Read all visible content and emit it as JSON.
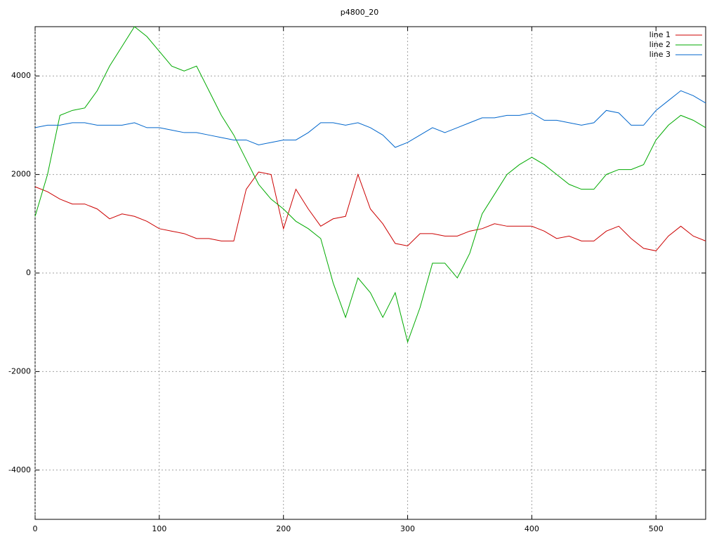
{
  "chart_data": {
    "type": "line",
    "title": "p4800_20",
    "x": [
      0,
      10,
      20,
      30,
      40,
      50,
      60,
      70,
      80,
      90,
      100,
      110,
      120,
      130,
      140,
      150,
      160,
      170,
      180,
      190,
      200,
      210,
      220,
      230,
      240,
      250,
      260,
      270,
      280,
      290,
      300,
      310,
      320,
      330,
      340,
      350,
      360,
      370,
      380,
      390,
      400,
      410,
      420,
      430,
      440,
      450,
      460,
      470,
      480,
      490,
      500,
      510,
      520,
      530,
      540
    ],
    "series": [
      {
        "name": "line 1",
        "color": "#cc0000",
        "values": [
          1750,
          1650,
          1500,
          1400,
          1400,
          1300,
          1100,
          1200,
          1150,
          1050,
          900,
          850,
          800,
          700,
          700,
          650,
          650,
          1700,
          2050,
          2000,
          900,
          1700,
          1300,
          950,
          1100,
          1150,
          2000,
          1300,
          1000,
          600,
          550,
          800,
          800,
          750,
          750,
          850,
          900,
          1000,
          950,
          950,
          950,
          850,
          700,
          750,
          650,
          650,
          850,
          950,
          700,
          500,
          450,
          750,
          950,
          750,
          650
        ]
      },
      {
        "name": "line 2",
        "color": "#00aa00",
        "values": [
          1150,
          2000,
          3200,
          3300,
          3350,
          3700,
          4200,
          4600,
          5000,
          4800,
          4500,
          4200,
          4100,
          4200,
          3700,
          3200,
          2800,
          2300,
          1800,
          1500,
          1300,
          1050,
          900,
          700,
          -200,
          -900,
          -100,
          -400,
          -900,
          -400,
          -1400,
          -700,
          200,
          200,
          -100,
          400,
          1200,
          1600,
          2000,
          2200,
          2350,
          2200,
          2000,
          1800,
          1700,
          1700,
          2000,
          2100,
          2100,
          2200,
          2700,
          3000,
          3200,
          3100,
          2950
        ]
      },
      {
        "name": "line 3",
        "color": "#0066cc",
        "values": [
          2950,
          3000,
          3000,
          3050,
          3050,
          3000,
          3000,
          3000,
          3050,
          2950,
          2950,
          2900,
          2850,
          2850,
          2800,
          2750,
          2700,
          2700,
          2600,
          2650,
          2700,
          2700,
          2850,
          3050,
          3050,
          3000,
          3050,
          2950,
          2800,
          2550,
          2650,
          2800,
          2950,
          2850,
          2950,
          3050,
          3150,
          3150,
          3200,
          3200,
          3250,
          3100,
          3100,
          3050,
          3000,
          3050,
          3300,
          3250,
          3000,
          3000,
          3300,
          3500,
          3700,
          3600,
          3450
        ]
      }
    ],
    "xlim": [
      0,
      540
    ],
    "ylim": [
      -5000,
      5000
    ],
    "xticks": [
      0,
      100,
      200,
      300,
      400,
      500
    ],
    "yticks": [
      -4000,
      -2000,
      0,
      2000,
      4000
    ],
    "grid": true,
    "legend": "top-right"
  }
}
